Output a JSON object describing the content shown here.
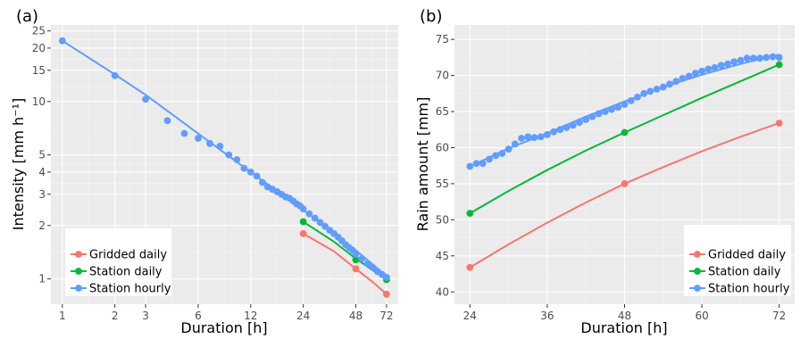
{
  "colors": {
    "gridded_daily": "#F8766D",
    "station_daily": "#00BA38",
    "station_hourly": "#619CFF",
    "panel_bg": "#EBEBEB",
    "grid_major": "#FFFFFF",
    "grid_minor": "#F5F5F5"
  },
  "chart_data": [
    {
      "panel_label": "(a)",
      "type": "scatter",
      "xlabel": "Duration [h]",
      "ylabel": "Intensity [mm h⁻¹]",
      "x_scale": "log",
      "y_scale": "log",
      "xlim": [
        0.86,
        84
      ],
      "ylim": [
        0.72,
        27
      ],
      "xticks": [
        1,
        2,
        3,
        6,
        12,
        24,
        48,
        72
      ],
      "xtick_labels": [
        "1",
        "2",
        "3",
        "6",
        "12",
        "24",
        "48",
        "72"
      ],
      "yticks": [
        1,
        2,
        3,
        4,
        5,
        10,
        15,
        20,
        25
      ],
      "ytick_labels": [
        "1",
        "2",
        "3",
        "4",
        "5",
        "10",
        "15",
        "20",
        "25"
      ],
      "grid": true,
      "legend_position": "bottom-left",
      "legend": [
        "Gridded daily",
        "Station daily",
        "Station hourly"
      ],
      "series": [
        {
          "name": "Gridded daily",
          "points": [
            [
              24,
              1.8
            ],
            [
              48,
              1.14
            ],
            [
              72,
              0.82
            ]
          ],
          "fit": [
            [
              24,
              1.8
            ],
            [
              36,
              1.43
            ],
            [
              48,
              1.14
            ],
            [
              60,
              0.96
            ],
            [
              72,
              0.82
            ]
          ]
        },
        {
          "name": "Station daily",
          "points": [
            [
              24,
              2.1
            ],
            [
              48,
              1.28
            ],
            [
              72,
              0.99
            ]
          ],
          "fit": [
            [
              24,
              2.1
            ],
            [
              36,
              1.62
            ],
            [
              48,
              1.3
            ],
            [
              60,
              1.12
            ],
            [
              72,
              0.99
            ]
          ]
        },
        {
          "name": "Station hourly",
          "points": [
            [
              1,
              22.0
            ],
            [
              2,
              14.0
            ],
            [
              3,
              10.3
            ],
            [
              4,
              7.8
            ],
            [
              5,
              6.6
            ],
            [
              6,
              6.2
            ],
            [
              7,
              5.8
            ],
            [
              8,
              5.6
            ],
            [
              9,
              5.0
            ],
            [
              10,
              4.7
            ],
            [
              11,
              4.2
            ],
            [
              12,
              4.0
            ],
            [
              13,
              3.8
            ],
            [
              14,
              3.5
            ],
            [
              15,
              3.3
            ],
            [
              16,
              3.2
            ],
            [
              17,
              3.1
            ],
            [
              18,
              3.0
            ],
            [
              19,
              2.9
            ],
            [
              20,
              2.85
            ],
            [
              21,
              2.75
            ],
            [
              22,
              2.65
            ],
            [
              23,
              2.58
            ],
            [
              24,
              2.48
            ],
            [
              26,
              2.33
            ],
            [
              28,
              2.2
            ],
            [
              30,
              2.08
            ],
            [
              32,
              1.98
            ],
            [
              34,
              1.88
            ],
            [
              36,
              1.8
            ],
            [
              38,
              1.72
            ],
            [
              40,
              1.64
            ],
            [
              42,
              1.56
            ],
            [
              44,
              1.5
            ],
            [
              46,
              1.45
            ],
            [
              48,
              1.38
            ],
            [
              52,
              1.3
            ],
            [
              56,
              1.22
            ],
            [
              60,
              1.16
            ],
            [
              64,
              1.1
            ],
            [
              68,
              1.06
            ],
            [
              72,
              1.02
            ]
          ],
          "fit": [
            [
              1,
              22.0
            ],
            [
              2,
              14.2
            ],
            [
              3,
              10.9
            ],
            [
              6,
              6.6
            ],
            [
              12,
              4.0
            ],
            [
              24,
              2.45
            ],
            [
              48,
              1.45
            ],
            [
              72,
              1.04
            ]
          ]
        }
      ]
    },
    {
      "panel_label": "(b)",
      "type": "scatter",
      "xlabel": "Duration [h]",
      "ylabel": "Rain amount [mm]",
      "x_scale": "linear",
      "y_scale": "linear",
      "xlim": [
        21.6,
        74.4
      ],
      "ylim": [
        38.3,
        77
      ],
      "xticks": [
        24,
        36,
        48,
        60,
        72
      ],
      "xtick_labels": [
        "24",
        "36",
        "48",
        "60",
        "72"
      ],
      "yticks": [
        40,
        45,
        50,
        55,
        60,
        65,
        70,
        75
      ],
      "ytick_labels": [
        "40",
        "45",
        "50",
        "55",
        "60",
        "65",
        "70",
        "75"
      ],
      "grid": true,
      "legend_position": "bottom-right",
      "legend": [
        "Gridded daily",
        "Station daily",
        "Station hourly"
      ],
      "series": [
        {
          "name": "Gridded daily",
          "points": [
            [
              24,
              43.4
            ],
            [
              48,
              55.0
            ],
            [
              72,
              63.4
            ]
          ],
          "fit": [
            [
              24,
              43.4
            ],
            [
              30,
              46.6
            ],
            [
              36,
              49.6
            ],
            [
              42,
              52.4
            ],
            [
              48,
              55.0
            ],
            [
              54,
              57.3
            ],
            [
              60,
              59.5
            ],
            [
              66,
              61.5
            ],
            [
              72,
              63.4
            ]
          ]
        },
        {
          "name": "Station daily",
          "points": [
            [
              24,
              50.9
            ],
            [
              48,
              62.1
            ],
            [
              72,
              71.5
            ]
          ],
          "fit": [
            [
              24,
              50.9
            ],
            [
              30,
              54.0
            ],
            [
              36,
              56.9
            ],
            [
              42,
              59.6
            ],
            [
              48,
              62.1
            ],
            [
              54,
              64.5
            ],
            [
              60,
              66.9
            ],
            [
              66,
              69.2
            ],
            [
              72,
              71.5
            ]
          ]
        },
        {
          "name": "Station hourly",
          "points": [
            [
              24,
              57.4
            ],
            [
              25,
              57.8
            ],
            [
              26,
              57.8
            ],
            [
              27,
              58.4
            ],
            [
              28,
              58.9
            ],
            [
              29,
              59.2
            ],
            [
              30,
              59.8
            ],
            [
              31,
              60.5
            ],
            [
              32,
              61.3
            ],
            [
              33,
              61.5
            ],
            [
              34,
              61.4
            ],
            [
              35,
              61.5
            ],
            [
              36,
              61.8
            ],
            [
              37,
              62.2
            ],
            [
              38,
              62.5
            ],
            [
              39,
              62.8
            ],
            [
              40,
              63.1
            ],
            [
              41,
              63.5
            ],
            [
              42,
              63.9
            ],
            [
              43,
              64.3
            ],
            [
              44,
              64.7
            ],
            [
              45,
              65.0
            ],
            [
              46,
              65.3
            ],
            [
              47,
              65.6
            ],
            [
              48,
              66.0
            ],
            [
              49,
              66.5
            ],
            [
              50,
              67.0
            ],
            [
              51,
              67.5
            ],
            [
              52,
              67.8
            ],
            [
              53,
              68.1
            ],
            [
              54,
              68.4
            ],
            [
              55,
              68.8
            ],
            [
              56,
              69.2
            ],
            [
              57,
              69.6
            ],
            [
              58,
              69.9
            ],
            [
              59,
              70.3
            ],
            [
              60,
              70.6
            ],
            [
              61,
              70.9
            ],
            [
              62,
              71.1
            ],
            [
              63,
              71.4
            ],
            [
              64,
              71.6
            ],
            [
              65,
              71.9
            ],
            [
              66,
              72.1
            ],
            [
              67,
              72.4
            ],
            [
              68,
              72.4
            ],
            [
              69,
              72.4
            ],
            [
              70,
              72.5
            ],
            [
              71,
              72.6
            ],
            [
              72,
              72.5
            ]
          ],
          "fit": [
            [
              24,
              57.4
            ],
            [
              30,
              59.9
            ],
            [
              36,
              62.0
            ],
            [
              42,
              64.3
            ],
            [
              48,
              66.4
            ],
            [
              54,
              68.4
            ],
            [
              60,
              70.1
            ],
            [
              66,
              71.6
            ],
            [
              72,
              72.9
            ]
          ]
        }
      ]
    }
  ]
}
